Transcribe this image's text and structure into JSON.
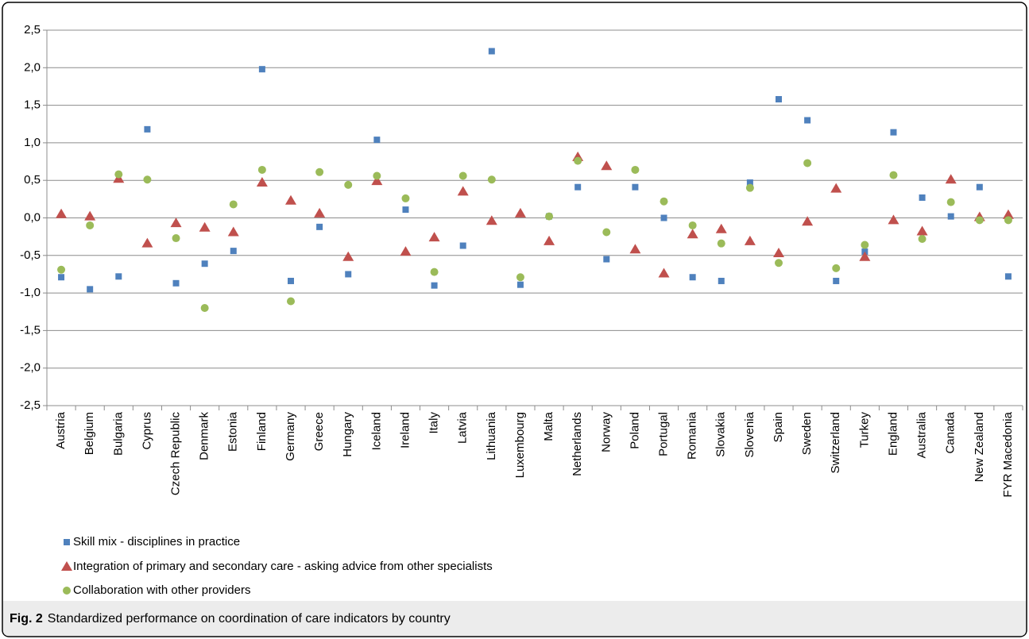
{
  "chart_data": {
    "type": "scatter",
    "caption_label": "Fig. 2",
    "caption": "Standardized performance on coordination of care indicators by country",
    "categories": [
      "Austria",
      "Belgium",
      "Bulgaria",
      "Cyprus",
      "Czech Republic",
      "Denmark",
      "Estonia",
      "Finland",
      "Germany",
      "Greece",
      "Hungary",
      "Iceland",
      "Ireland",
      "Italy",
      "Latvia",
      "Lithuania",
      "Luxembourg",
      "Malta",
      "Netherlands",
      "Norway",
      "Poland",
      "Portugal",
      "Romania",
      "Slovakia",
      "Slovenia",
      "Spain",
      "Sweden",
      "Switzerland",
      "Turkey",
      "England",
      "Australia",
      "Canada",
      "New Zealand",
      "FYR Macedonia"
    ],
    "series": [
      {
        "name": "Skill mix - disciplines in practice",
        "color": "#4f81bd",
        "marker": "square",
        "values": [
          -0.79,
          -0.95,
          -0.78,
          1.18,
          -0.87,
          -0.61,
          -0.44,
          1.98,
          -0.84,
          -0.12,
          -0.75,
          1.04,
          0.11,
          -0.9,
          -0.37,
          2.22,
          -0.89,
          0.02,
          0.41,
          -0.55,
          0.41,
          0.0,
          -0.79,
          -0.84,
          0.47,
          1.58,
          1.3,
          -0.84,
          -0.45,
          1.14,
          0.27,
          0.02,
          0.41,
          -0.78
        ]
      },
      {
        "name": "Integration of primary and secondary care - asking advice from other specialists",
        "color": "#c0504d",
        "marker": "triangle",
        "values": [
          0.05,
          0.02,
          0.52,
          -0.34,
          -0.07,
          -0.13,
          -0.19,
          0.47,
          0.23,
          0.06,
          -0.52,
          0.49,
          -0.45,
          -0.26,
          0.35,
          -0.04,
          0.06,
          -0.31,
          0.81,
          0.69,
          -0.42,
          -0.74,
          -0.22,
          -0.15,
          -0.31,
          -0.47,
          -0.05,
          0.39,
          -0.52,
          -0.03,
          -0.18,
          0.51,
          0.01,
          0.04
        ]
      },
      {
        "name": "Collaboration with other providers",
        "color": "#9bbb59",
        "marker": "circle",
        "values": [
          -0.69,
          -0.1,
          0.58,
          0.51,
          -0.27,
          -1.2,
          0.18,
          0.64,
          -1.11,
          0.61,
          0.44,
          0.56,
          0.26,
          -0.72,
          0.56,
          0.51,
          -0.79,
          0.02,
          0.76,
          -0.19,
          0.64,
          0.22,
          -0.1,
          -0.34,
          0.4,
          -0.6,
          0.73,
          -0.67,
          -0.36,
          0.57,
          -0.28,
          0.21,
          -0.03,
          -0.03
        ]
      }
    ],
    "ylim": [
      -2.5,
      2.5
    ],
    "yticks": [
      {
        "value": -2.5,
        "label": "-2,5"
      },
      {
        "value": -2.0,
        "label": "-2,0"
      },
      {
        "value": -1.5,
        "label": "-1,5"
      },
      {
        "value": -1.0,
        "label": "-1,0"
      },
      {
        "value": -0.5,
        "label": "-0,5"
      },
      {
        "value": 0,
        "label": "0,0"
      },
      {
        "value": 0.5,
        "label": "0,5"
      },
      {
        "value": 1.0,
        "label": "1,0"
      },
      {
        "value": 1.5,
        "label": "1,5"
      },
      {
        "value": 2.0,
        "label": "2,0"
      },
      {
        "value": 2.5,
        "label": "2,5"
      }
    ],
    "grid": true
  }
}
